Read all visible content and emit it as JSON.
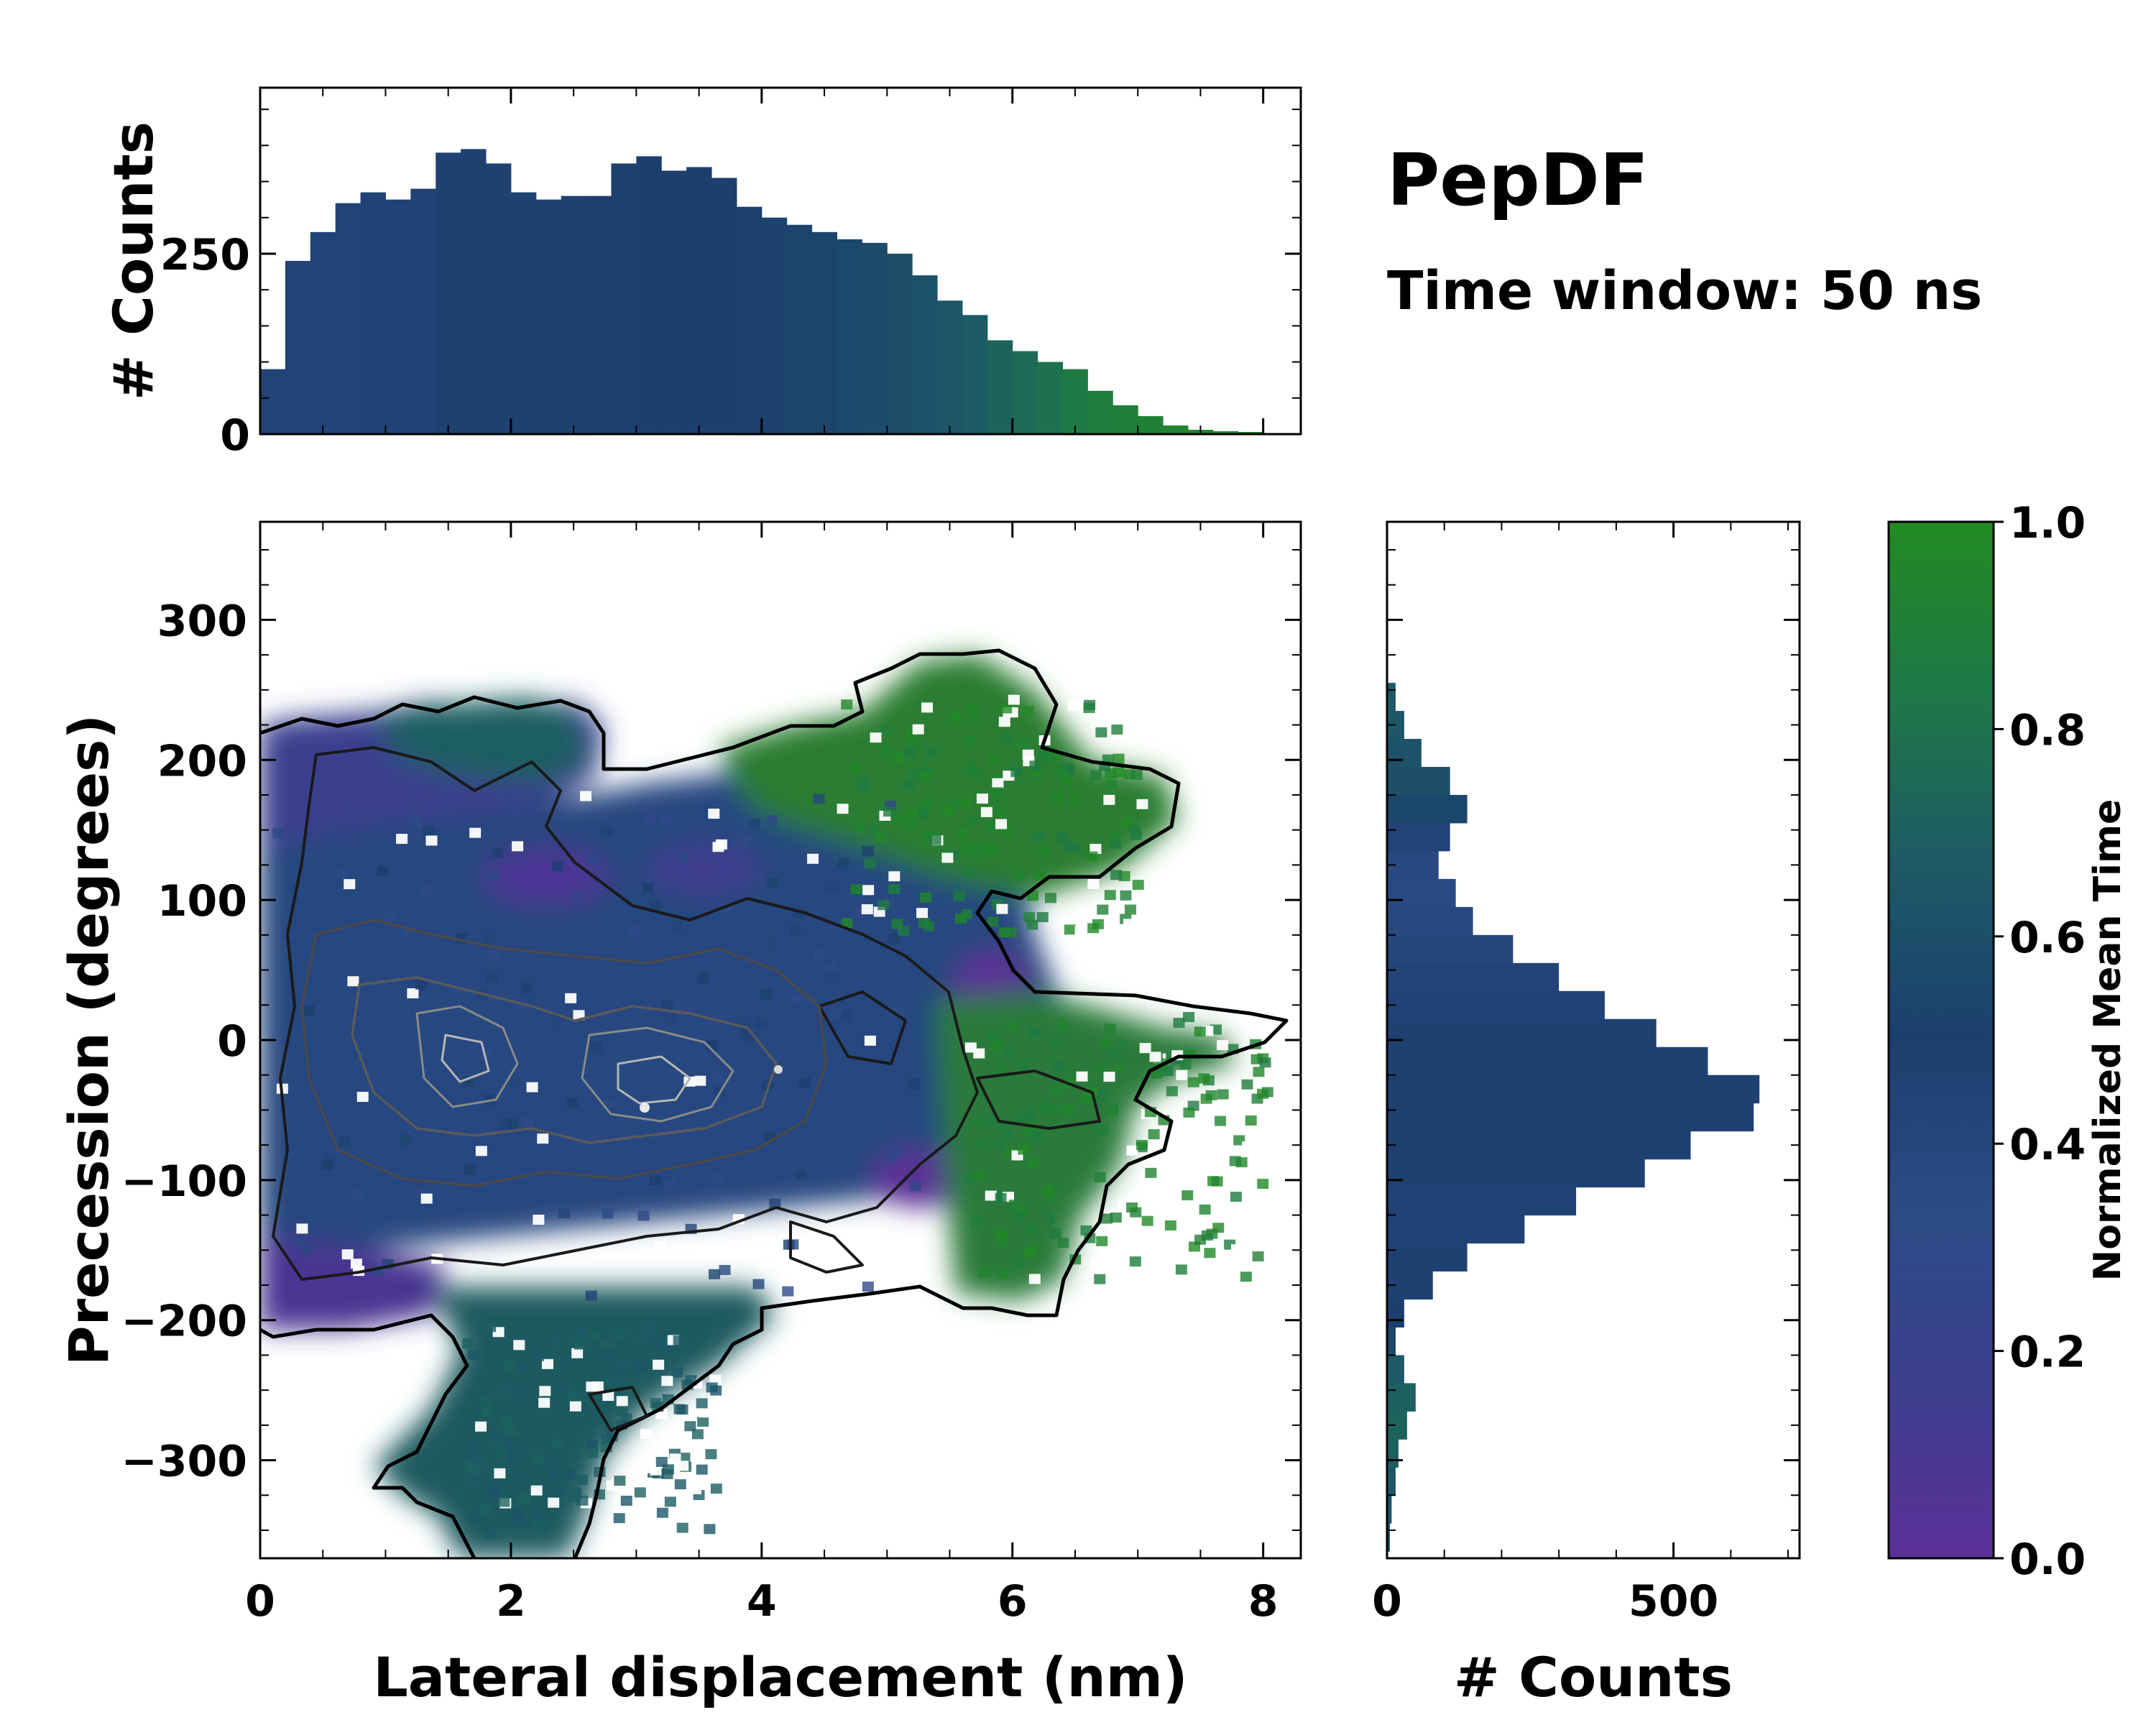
{
  "figure": {
    "title": "PepDF",
    "subtitle": "Time window: 50 ns"
  },
  "chart_data": {
    "type": "heatmap",
    "panels": {
      "main": {
        "type": "heatmap",
        "xlabel": "Lateral displacement (nm)",
        "ylabel": "Precession (degrees)",
        "xlim": [
          0,
          8.3
        ],
        "ylim": [
          -370,
          370
        ],
        "xticks": [
          0,
          2,
          4,
          6,
          8
        ],
        "xtick_labels": [
          "0",
          "2",
          "4",
          "6",
          "8"
        ],
        "yticks": [
          -300,
          -200,
          -100,
          0,
          100,
          200,
          300
        ],
        "ytick_labels": [
          "−300",
          "−200",
          "−100",
          "0",
          "100",
          "200",
          "300"
        ],
        "density_peak": {
          "x": 3.05,
          "y": -45
        },
        "contours": [
          "black outer boundary",
          "dark grey density levels",
          "light grey high-density levels"
        ]
      },
      "top_hist": {
        "type": "bar",
        "ylabel": "# Counts",
        "ylim": [
          0,
          480
        ],
        "yticks": [
          0,
          250
        ],
        "ytick_labels": [
          "0",
          "250"
        ],
        "x_centers": [
          0.1,
          0.3,
          0.5,
          0.7,
          0.9,
          1.1,
          1.3,
          1.5,
          1.7,
          1.9,
          2.1,
          2.3,
          2.5,
          2.7,
          2.9,
          3.1,
          3.3,
          3.5,
          3.7,
          3.9,
          4.1,
          4.3,
          4.5,
          4.7,
          4.9,
          5.1,
          5.3,
          5.5,
          5.7,
          5.9,
          6.1,
          6.3,
          6.5,
          6.7,
          6.9,
          7.1,
          7.3,
          7.5,
          7.7,
          7.9,
          8.1
        ],
        "values": [
          90,
          240,
          280,
          320,
          335,
          325,
          340,
          390,
          395,
          375,
          335,
          325,
          330,
          330,
          375,
          385,
          365,
          370,
          355,
          315,
          300,
          290,
          280,
          270,
          265,
          250,
          220,
          185,
          165,
          130,
          115,
          100,
          90,
          60,
          40,
          25,
          12,
          6,
          4,
          3,
          0
        ],
        "color_values": [
          0.45,
          0.45,
          0.45,
          0.45,
          0.46,
          0.46,
          0.46,
          0.47,
          0.47,
          0.47,
          0.48,
          0.48,
          0.48,
          0.49,
          0.49,
          0.5,
          0.5,
          0.5,
          0.5,
          0.51,
          0.52,
          0.53,
          0.54,
          0.56,
          0.58,
          0.6,
          0.62,
          0.65,
          0.68,
          0.72,
          0.76,
          0.8,
          0.85,
          0.88,
          0.9,
          0.92,
          0.94,
          0.95,
          0.96,
          0.97,
          0.97
        ]
      },
      "right_hist": {
        "type": "bar",
        "orientation": "horizontal",
        "xlabel": "# Counts",
        "xlim": [
          0,
          720
        ],
        "xticks": [
          0,
          500
        ],
        "xtick_labels": [
          "0",
          "500"
        ],
        "y_centers": [
          -355,
          -335,
          -315,
          -295,
          -275,
          -255,
          -235,
          -215,
          -195,
          -175,
          -155,
          -135,
          -115,
          -95,
          -75,
          -55,
          -35,
          -15,
          5,
          25,
          45,
          65,
          85,
          105,
          125,
          145,
          165,
          185,
          205,
          225,
          245
        ],
        "values": [
          5,
          8,
          15,
          20,
          35,
          50,
          30,
          15,
          30,
          80,
          140,
          240,
          330,
          450,
          530,
          640,
          650,
          560,
          470,
          380,
          300,
          220,
          150,
          120,
          90,
          110,
          140,
          110,
          60,
          30,
          15
        ],
        "color_values": [
          0.6,
          0.62,
          0.65,
          0.7,
          0.72,
          0.7,
          0.66,
          0.55,
          0.5,
          0.48,
          0.47,
          0.46,
          0.46,
          0.47,
          0.48,
          0.48,
          0.48,
          0.48,
          0.47,
          0.46,
          0.44,
          0.4,
          0.38,
          0.36,
          0.38,
          0.45,
          0.55,
          0.6,
          0.62,
          0.65,
          0.66
        ]
      },
      "colorbar": {
        "label": "Normalized Mean Time",
        "range": [
          0,
          1
        ],
        "ticks": [
          0.0,
          0.2,
          0.4,
          0.6,
          0.8,
          1.0
        ],
        "tick_labels": [
          "0.0",
          "0.2",
          "0.4",
          "0.6",
          "0.8",
          "1.0"
        ],
        "colormap": [
          "#5c3098",
          "#3c3f8e",
          "#2c4c86",
          "#1c3f6e",
          "#1d5a66",
          "#1e7748",
          "#228b22"
        ]
      }
    }
  }
}
